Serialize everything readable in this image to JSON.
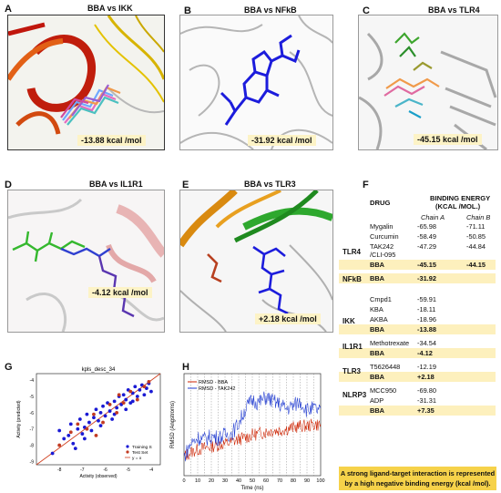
{
  "panels": {
    "A": {
      "letter": "A",
      "title": "BBA vs IKK",
      "energy": "-13.88 kcal /mol"
    },
    "B": {
      "letter": "B",
      "title": "BBA vs NFkB",
      "energy": "-31.92 kcal /mol"
    },
    "C": {
      "letter": "C",
      "title": "BBA vs TLR4",
      "energy": "-45.15 kcal /mol"
    },
    "D": {
      "letter": "D",
      "title": "BBA vs IL1R1",
      "energy": "-4.12 kcal /mol"
    },
    "E": {
      "letter": "E",
      "title": "BBA vs TLR3",
      "energy": "+2.18 kcal /mol"
    },
    "F": {
      "letter": "F"
    },
    "G": {
      "letter": "G"
    },
    "H": {
      "letter": "H"
    }
  },
  "table": {
    "header_drug": "DRUG",
    "header_energy_1": "BINDING ENERGY",
    "header_energy_2": "(KCAL /MOL.)",
    "chain_a": "Chain A",
    "chain_b": "Chain B",
    "rows": [
      {
        "drug": "Mygalin",
        "a": "-65.98",
        "b": "-71.11"
      },
      {
        "drug": "Curcumin",
        "a": "-58.49",
        "b": "-50.85"
      },
      {
        "drug": "TAK242",
        "a": "-47.29",
        "b": "-44.84"
      },
      {
        "drug": "/CLI-095",
        "a": "",
        "b": ""
      },
      {
        "drug": "BBA",
        "a": "-45.15",
        "b": "-44.15"
      },
      {
        "drug": "BBA",
        "a": "-31.92",
        "b": ""
      },
      {
        "drug": "Cmpd1",
        "a": "-59.91",
        "b": ""
      },
      {
        "drug": "KBA",
        "a": "-18.11",
        "b": ""
      },
      {
        "drug": "AKBA",
        "a": "-18.96",
        "b": ""
      },
      {
        "drug": "BBA",
        "a": "-13.88",
        "b": ""
      },
      {
        "drug": "Methotrexate",
        "a": "-34.54",
        "b": ""
      },
      {
        "drug": "BBA",
        "a": "-4.12",
        "b": ""
      },
      {
        "drug": "T5626448",
        "a": "-12.19",
        "b": ""
      },
      {
        "drug": "BBA",
        "a": "+2.18",
        "b": ""
      },
      {
        "drug": "MCC950",
        "a": "-69.80",
        "b": ""
      },
      {
        "drug": "ADP",
        "a": "-31.31",
        "b": ""
      },
      {
        "drug": "BBA",
        "a": "+7.35",
        "b": ""
      }
    ],
    "receptors": [
      "TLR4",
      "NFkB",
      "IKK",
      "IL1R1",
      "TLR3",
      "NLRP3"
    ],
    "note": "A strong ligand-target interaction is represented by a high negative binding energy (kcal /mol)."
  },
  "chart_data": [
    {
      "type": "scatter",
      "title": "kpls_desc_34",
      "xlabel": "Activity (observed)",
      "ylabel": "Activity (predicted)",
      "xlim": [
        -9,
        -3.6
      ],
      "ylim": [
        -9.2,
        -3.6
      ],
      "xticks": [
        "-8",
        "-7",
        "-6",
        "-5",
        "-4"
      ],
      "yticks": [
        "-4",
        "-5",
        "-6",
        "-7",
        "-8",
        "-9"
      ],
      "legend": [
        "Training S",
        "Test Set",
        "y = x"
      ],
      "legend_position": "bottom-right",
      "series": [
        {
          "name": "Training S",
          "color": "#1a1ad4",
          "points": [
            [
              -8.3,
              -8.5
            ],
            [
              -8.0,
              -7.1
            ],
            [
              -7.8,
              -7.6
            ],
            [
              -7.6,
              -7.4
            ],
            [
              -7.5,
              -6.7
            ],
            [
              -7.4,
              -7.9
            ],
            [
              -7.2,
              -7.0
            ],
            [
              -7.1,
              -6.4
            ],
            [
              -7.0,
              -7.3
            ],
            [
              -6.9,
              -6.9
            ],
            [
              -6.8,
              -6.1
            ],
            [
              -6.7,
              -6.6
            ],
            [
              -6.6,
              -7.1
            ],
            [
              -6.5,
              -6.3
            ],
            [
              -6.4,
              -5.8
            ],
            [
              -6.3,
              -6.5
            ],
            [
              -6.2,
              -6.0
            ],
            [
              -6.1,
              -5.6
            ],
            [
              -6.0,
              -6.2
            ],
            [
              -5.9,
              -5.4
            ],
            [
              -5.8,
              -5.9
            ],
            [
              -5.7,
              -6.4
            ],
            [
              -5.6,
              -5.3
            ],
            [
              -5.5,
              -5.7
            ],
            [
              -5.4,
              -5.0
            ],
            [
              -5.3,
              -5.5
            ],
            [
              -5.2,
              -4.9
            ],
            [
              -5.1,
              -5.2
            ],
            [
              -5.0,
              -4.6
            ],
            [
              -4.9,
              -5.4
            ],
            [
              -4.8,
              -4.8
            ],
            [
              -4.7,
              -4.4
            ],
            [
              -4.6,
              -5.0
            ],
            [
              -4.5,
              -4.6
            ],
            [
              -4.4,
              -4.3
            ],
            [
              -4.3,
              -4.9
            ],
            [
              -4.2,
              -4.5
            ],
            [
              -4.1,
              -4.2
            ],
            [
              -4.0,
              -4.7
            ],
            [
              -7.3,
              -8.2
            ],
            [
              -6.9,
              -7.6
            ],
            [
              -6.2,
              -6.8
            ],
            [
              -5.6,
              -6.1
            ],
            [
              -5.1,
              -5.8
            ],
            [
              -4.8,
              -5.3
            ]
          ]
        },
        {
          "name": "Test Set",
          "color": "#c23b22",
          "points": [
            [
              -8.0,
              -8.0
            ],
            [
              -7.5,
              -7.2
            ],
            [
              -7.2,
              -6.7
            ],
            [
              -6.8,
              -7.0
            ],
            [
              -6.5,
              -6.1
            ],
            [
              -6.1,
              -6.6
            ],
            [
              -5.8,
              -5.5
            ],
            [
              -5.5,
              -6.0
            ],
            [
              -5.2,
              -5.4
            ],
            [
              -4.9,
              -4.7
            ],
            [
              -4.6,
              -5.2
            ],
            [
              -4.3,
              -4.4
            ],
            [
              -4.1,
              -4.1
            ],
            [
              -6.4,
              -7.4
            ],
            [
              -5.4,
              -4.9
            ]
          ]
        }
      ]
    },
    {
      "type": "line",
      "xlabel": "Time (ns)",
      "ylabel": "RMSD (Angstroms)",
      "xlim": [
        0,
        100
      ],
      "ylim": [
        0,
        7
      ],
      "xticks": [
        "0",
        "10",
        "20",
        "30",
        "40",
        "50",
        "60",
        "70",
        "80",
        "90",
        "100"
      ],
      "legend_position": "top-left",
      "series": [
        {
          "name": "RMSD - BBA",
          "color": "#cc2200",
          "x": [
            0,
            5,
            10,
            15,
            20,
            25,
            30,
            35,
            40,
            45,
            50,
            55,
            60,
            65,
            70,
            75,
            80,
            85,
            90,
            95,
            100
          ],
          "y": [
            1.3,
            1.6,
            1.8,
            1.9,
            2.0,
            2.1,
            2.2,
            2.3,
            2.5,
            2.6,
            2.8,
            2.9,
            3.0,
            3.1,
            3.1,
            3.2,
            3.3,
            3.4,
            3.4,
            3.5,
            3.5
          ]
        },
        {
          "name": "RMSD - TAK242",
          "color": "#1f3ad0",
          "x": [
            0,
            5,
            10,
            15,
            20,
            25,
            30,
            35,
            40,
            45,
            50,
            55,
            60,
            65,
            70,
            75,
            80,
            85,
            90,
            95,
            100
          ],
          "y": [
            1.3,
            2.2,
            2.6,
            2.5,
            2.7,
            2.6,
            2.8,
            2.9,
            3.6,
            4.6,
            5.2,
            5.0,
            5.4,
            5.1,
            4.9,
            4.6,
            4.8,
            5.1,
            4.5,
            4.6,
            4.4
          ]
        }
      ]
    }
  ]
}
